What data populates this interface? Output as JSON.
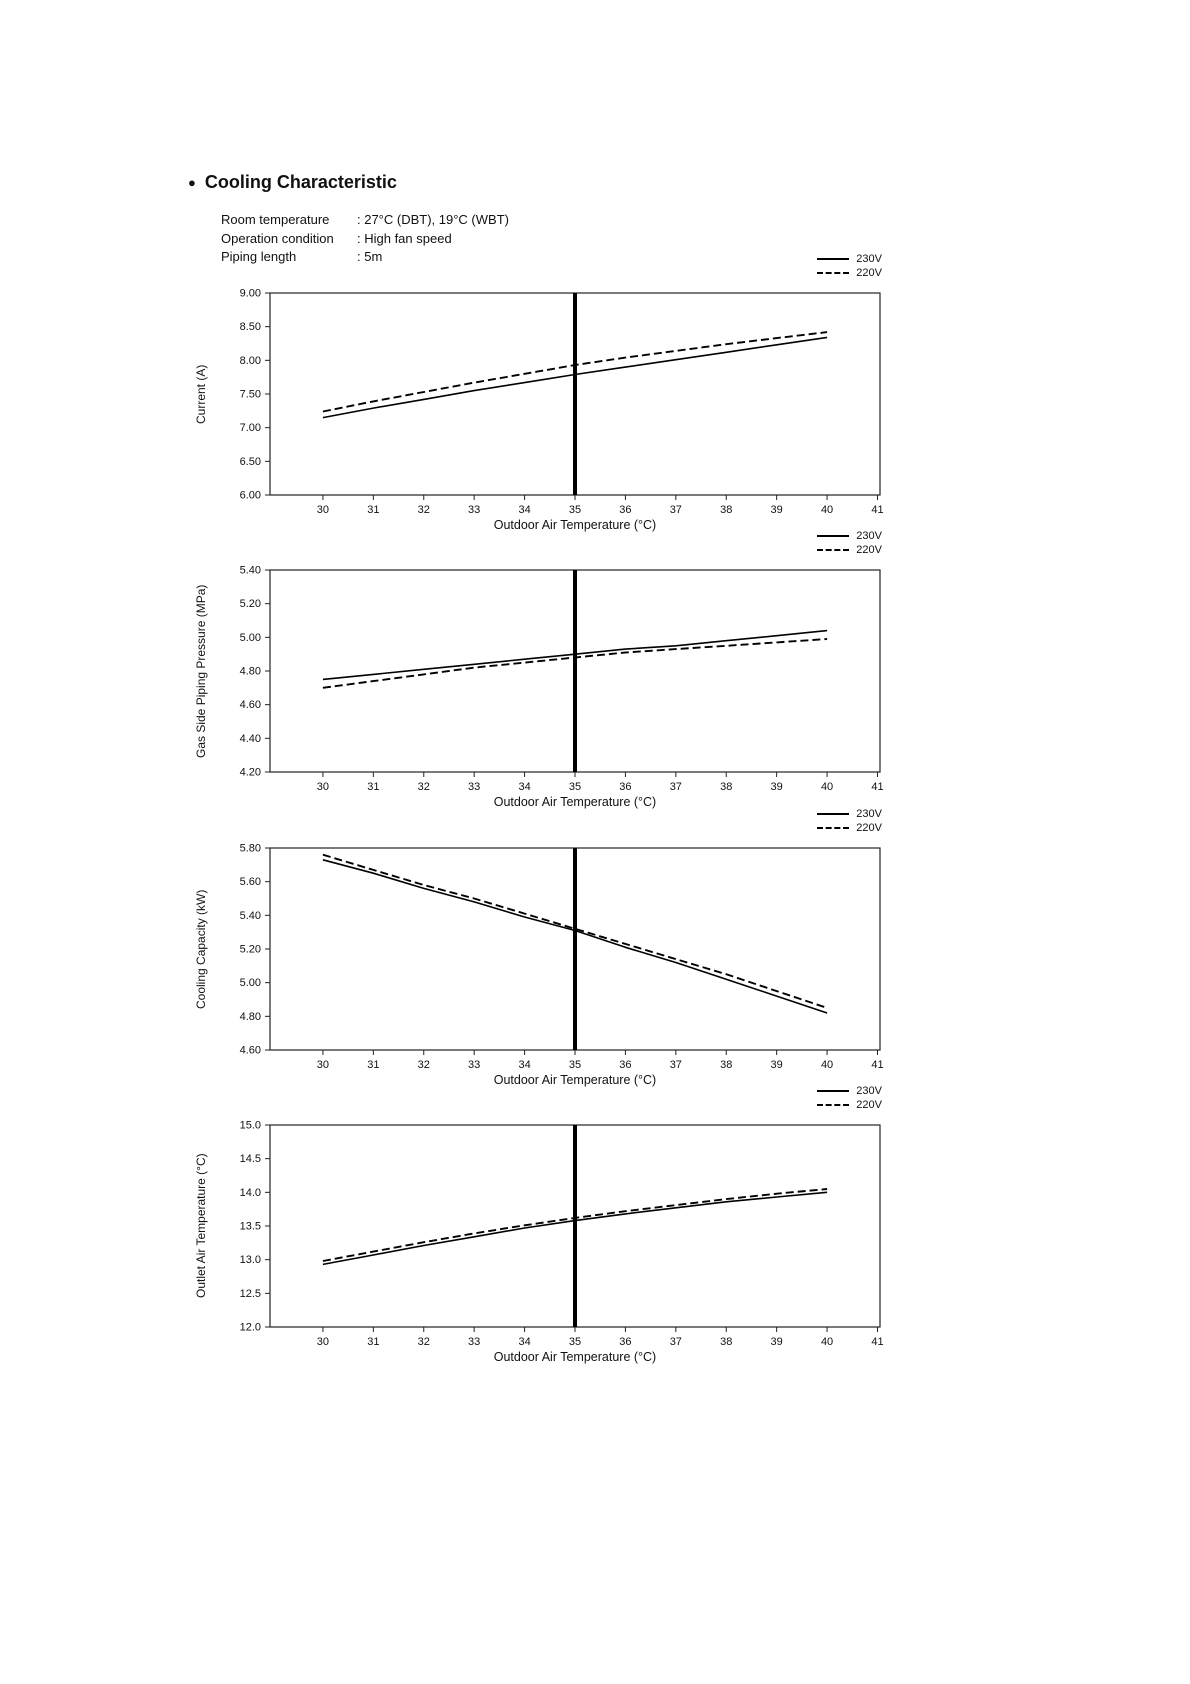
{
  "page": {
    "bullet": "●",
    "title": "Cooling Characteristic",
    "conditions": [
      {
        "label": "Room temperature",
        "value": ": 27°C (DBT), 19°C (WBT)"
      },
      {
        "label": "Operation condition",
        "value": ": High fan speed"
      },
      {
        "label": "Piping length",
        "value": ": 5m"
      }
    ]
  },
  "legend": {
    "items": [
      {
        "label": "230V",
        "line": "solid"
      },
      {
        "label": "220V",
        "line": "dashed"
      }
    ]
  },
  "colors": {
    "line": "#000000",
    "axis": "#222222",
    "marker": "#000000"
  },
  "chart_data": [
    {
      "type": "line",
      "ylabel": "Current (A)",
      "xlabel": "Outdoor Air Temperature (°C)",
      "x": [
        30,
        31,
        32,
        33,
        34,
        35,
        36,
        37,
        38,
        39,
        40
      ],
      "xlim": [
        28.95,
        41.05
      ],
      "ylim": [
        6.0,
        9.0
      ],
      "marker_x": 35,
      "xticks": [
        {
          "v": 30,
          "label": "30"
        },
        {
          "v": 31,
          "label": "31"
        },
        {
          "v": 32,
          "label": "32"
        },
        {
          "v": 33,
          "label": "33"
        },
        {
          "v": 34,
          "label": "34"
        },
        {
          "v": 35,
          "label": "35"
        },
        {
          "v": 36,
          "label": "36"
        },
        {
          "v": 37,
          "label": "37"
        },
        {
          "v": 38,
          "label": "38"
        },
        {
          "v": 39,
          "label": "39"
        },
        {
          "v": 40,
          "label": "40"
        },
        {
          "v": 41,
          "label": "41"
        }
      ],
      "yticks": [
        {
          "v": 9.0,
          "label": "9.00"
        },
        {
          "v": 8.5,
          "label": "8.50"
        },
        {
          "v": 8.0,
          "label": "8.00"
        },
        {
          "v": 7.5,
          "label": "7.50"
        },
        {
          "v": 7.0,
          "label": "7.00"
        },
        {
          "v": 6.5,
          "label": "6.50"
        },
        {
          "v": 6.0,
          "label": "6.00"
        }
      ],
      "series": [
        {
          "name": "230V",
          "line": "solid",
          "values": [
            7.15,
            7.29,
            7.42,
            7.55,
            7.67,
            7.79,
            7.9,
            8.01,
            8.12,
            8.23,
            8.34
          ]
        },
        {
          "name": "220V",
          "line": "dashed",
          "values": [
            7.24,
            7.39,
            7.53,
            7.67,
            7.8,
            7.93,
            8.04,
            8.14,
            8.24,
            8.33,
            8.42
          ]
        }
      ]
    },
    {
      "type": "line",
      "ylabel": "Gas Side Piping Pressure (MPa)",
      "xlabel": "Outdoor Air Temperature (°C)",
      "x": [
        30,
        31,
        32,
        33,
        34,
        35,
        36,
        37,
        38,
        39,
        40
      ],
      "xlim": [
        28.95,
        41.05
      ],
      "ylim": [
        4.2,
        5.4
      ],
      "marker_x": 35,
      "xticks": [
        {
          "v": 30,
          "label": "30"
        },
        {
          "v": 31,
          "label": "31"
        },
        {
          "v": 32,
          "label": "32"
        },
        {
          "v": 33,
          "label": "33"
        },
        {
          "v": 34,
          "label": "34"
        },
        {
          "v": 35,
          "label": "35"
        },
        {
          "v": 36,
          "label": "36"
        },
        {
          "v": 37,
          "label": "37"
        },
        {
          "v": 38,
          "label": "38"
        },
        {
          "v": 39,
          "label": "39"
        },
        {
          "v": 40,
          "label": "40"
        },
        {
          "v": 41,
          "label": "41"
        }
      ],
      "yticks": [
        {
          "v": 5.4,
          "label": "5.40"
        },
        {
          "v": 5.2,
          "label": "5.20"
        },
        {
          "v": 5.0,
          "label": "5.00"
        },
        {
          "v": 4.8,
          "label": "4.80"
        },
        {
          "v": 4.6,
          "label": "4.60"
        },
        {
          "v": 4.4,
          "label": "4.40"
        },
        {
          "v": 4.2,
          "label": "4.20"
        }
      ],
      "series": [
        {
          "name": "230V",
          "line": "solid",
          "values": [
            4.75,
            4.78,
            4.81,
            4.84,
            4.87,
            4.9,
            4.93,
            4.95,
            4.98,
            5.01,
            5.04
          ]
        },
        {
          "name": "220V",
          "line": "dashed",
          "values": [
            4.7,
            4.74,
            4.78,
            4.82,
            4.85,
            4.88,
            4.91,
            4.93,
            4.95,
            4.97,
            4.99
          ]
        }
      ]
    },
    {
      "type": "line",
      "ylabel": "Cooling Capacity (kW)",
      "xlabel": "Outdoor Air Temperature (°C)",
      "x": [
        30,
        31,
        32,
        33,
        34,
        35,
        36,
        37,
        38,
        39,
        40
      ],
      "xlim": [
        28.95,
        41.05
      ],
      "ylim": [
        4.6,
        5.8
      ],
      "marker_x": 35,
      "xticks": [
        {
          "v": 30,
          "label": "30"
        },
        {
          "v": 31,
          "label": "31"
        },
        {
          "v": 32,
          "label": "32"
        },
        {
          "v": 33,
          "label": "33"
        },
        {
          "v": 34,
          "label": "34"
        },
        {
          "v": 35,
          "label": "35"
        },
        {
          "v": 36,
          "label": "36"
        },
        {
          "v": 37,
          "label": "37"
        },
        {
          "v": 38,
          "label": "38"
        },
        {
          "v": 39,
          "label": "39"
        },
        {
          "v": 40,
          "label": "40"
        },
        {
          "v": 41,
          "label": "41"
        }
      ],
      "yticks": [
        {
          "v": 5.8,
          "label": "5.80"
        },
        {
          "v": 5.6,
          "label": "5.60"
        },
        {
          "v": 5.4,
          "label": "5.40"
        },
        {
          "v": 5.2,
          "label": "5.20"
        },
        {
          "v": 5.0,
          "label": "5.00"
        },
        {
          "v": 4.8,
          "label": "4.80"
        },
        {
          "v": 4.6,
          "label": "4.60"
        }
      ],
      "series": [
        {
          "name": "230V",
          "line": "solid",
          "values": [
            5.73,
            5.65,
            5.56,
            5.48,
            5.39,
            5.31,
            5.21,
            5.12,
            5.02,
            4.92,
            4.82
          ]
        },
        {
          "name": "220V",
          "line": "dashed",
          "values": [
            5.76,
            5.67,
            5.58,
            5.5,
            5.41,
            5.32,
            5.23,
            5.14,
            5.05,
            4.95,
            4.85
          ]
        }
      ]
    },
    {
      "type": "line",
      "ylabel": "Outlet Air Temperature (°C)",
      "xlabel": "Outdoor Air Temperature (°C)",
      "x": [
        30,
        31,
        32,
        33,
        34,
        35,
        36,
        37,
        38,
        39,
        40
      ],
      "xlim": [
        28.95,
        41.05
      ],
      "ylim": [
        12.0,
        15.0
      ],
      "marker_x": 35,
      "xticks": [
        {
          "v": 30,
          "label": "30"
        },
        {
          "v": 31,
          "label": "31"
        },
        {
          "v": 32,
          "label": "32"
        },
        {
          "v": 33,
          "label": "33"
        },
        {
          "v": 34,
          "label": "34"
        },
        {
          "v": 35,
          "label": "35"
        },
        {
          "v": 36,
          "label": "36"
        },
        {
          "v": 37,
          "label": "37"
        },
        {
          "v": 38,
          "label": "38"
        },
        {
          "v": 39,
          "label": "39"
        },
        {
          "v": 40,
          "label": "40"
        },
        {
          "v": 41,
          "label": "41"
        }
      ],
      "yticks": [
        {
          "v": 15.0,
          "label": "15.0"
        },
        {
          "v": 14.5,
          "label": "14.5"
        },
        {
          "v": 14.0,
          "label": "14.0"
        },
        {
          "v": 13.5,
          "label": "13.5"
        },
        {
          "v": 13.0,
          "label": "13.0"
        },
        {
          "v": 12.5,
          "label": "12.5"
        },
        {
          "v": 12.0,
          "label": "12.0"
        }
      ],
      "series": [
        {
          "name": "230V",
          "line": "solid",
          "values": [
            12.93,
            13.07,
            13.21,
            13.34,
            13.47,
            13.58,
            13.68,
            13.77,
            13.86,
            13.93,
            14.0
          ]
        },
        {
          "name": "220V",
          "line": "dashed",
          "values": [
            12.98,
            13.12,
            13.26,
            13.39,
            13.51,
            13.62,
            13.72,
            13.81,
            13.9,
            13.98,
            14.05
          ]
        }
      ]
    }
  ]
}
